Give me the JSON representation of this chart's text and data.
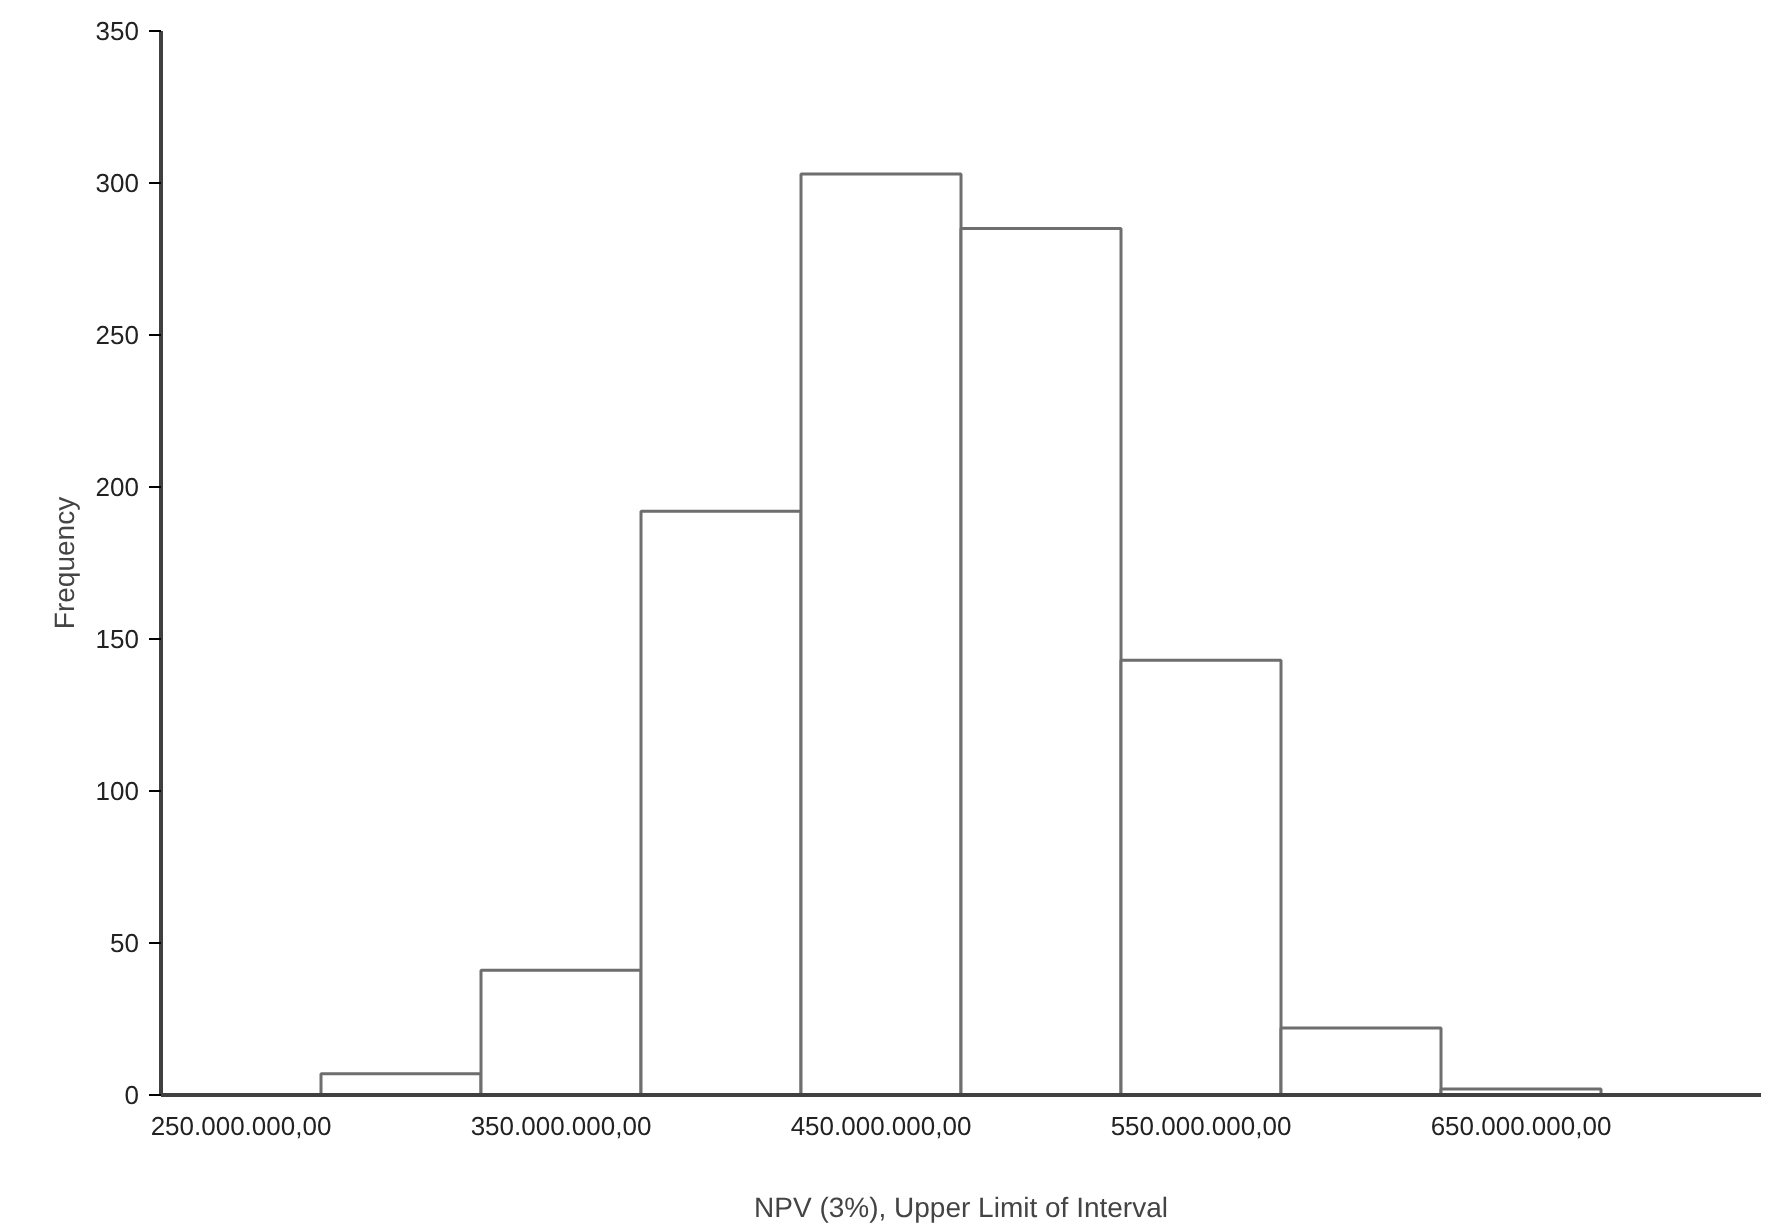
{
  "chart_data": {
    "type": "bar",
    "xlabel": "NPV (3%), Upper Limit of Interval",
    "ylabel": "Frequency",
    "categories": [
      "250.000.000,00",
      null,
      "350.000.000,00",
      null,
      "450.000.000,00",
      null,
      "550.000.000,00",
      null,
      "650.000.000,00",
      null
    ],
    "values": [
      null,
      7,
      41,
      192,
      303,
      285,
      143,
      22,
      2,
      null
    ],
    "color": "#ffffff",
    "ylim": [
      0,
      350
    ],
    "yticks": [
      0,
      50,
      100,
      150,
      200,
      250,
      300,
      350
    ],
    "grid": false
  }
}
